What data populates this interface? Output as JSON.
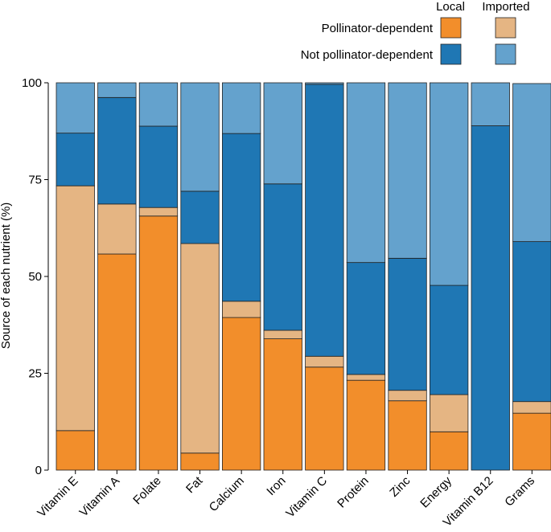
{
  "chart_data": {
    "type": "bar",
    "stacked": true,
    "ylabel": "Source of each nutrient (%)",
    "ylim": [
      0,
      100
    ],
    "yticks": [
      0,
      25,
      50,
      75,
      100
    ],
    "grid": false,
    "legend_placement": "top-right",
    "legend": {
      "col_headers": [
        "Local",
        "Imported"
      ],
      "row_labels": [
        "Pollinator-dependent",
        "Not pollinator-dependent"
      ]
    },
    "categories": [
      "Vitamin E",
      "Vitamin A",
      "Folate",
      "Fat",
      "Calcium",
      "Iron",
      "Vitamin C",
      "Protein",
      "Zinc",
      "Energy",
      "Vitamin B12",
      "Grams"
    ],
    "series": [
      {
        "name": "Local pollinator-dependent",
        "color": "#f28e2b",
        "values": [
          10.2,
          55.8,
          65.6,
          4.4,
          39.4,
          33.9,
          26.6,
          23.2,
          17.9,
          9.9,
          0.0,
          14.7
        ]
      },
      {
        "name": "Imported pollinator-dependent",
        "color": "#e5b583",
        "values": [
          63.2,
          12.9,
          2.2,
          54.1,
          4.2,
          2.2,
          2.8,
          1.5,
          2.7,
          9.6,
          0.0,
          3.0
        ]
      },
      {
        "name": "Local not pollinator-dependent",
        "color": "#1f77b4",
        "values": [
          13.6,
          27.5,
          21.0,
          13.5,
          43.3,
          37.8,
          70.2,
          28.9,
          34.1,
          28.2,
          88.9,
          41.3
        ]
      },
      {
        "name": "Imported not pollinator-dependent",
        "color": "#64a2cd",
        "values": [
          13.0,
          3.8,
          11.2,
          28.0,
          13.1,
          26.1,
          0.4,
          46.4,
          45.3,
          52.3,
          11.1,
          40.8
        ]
      }
    ]
  }
}
